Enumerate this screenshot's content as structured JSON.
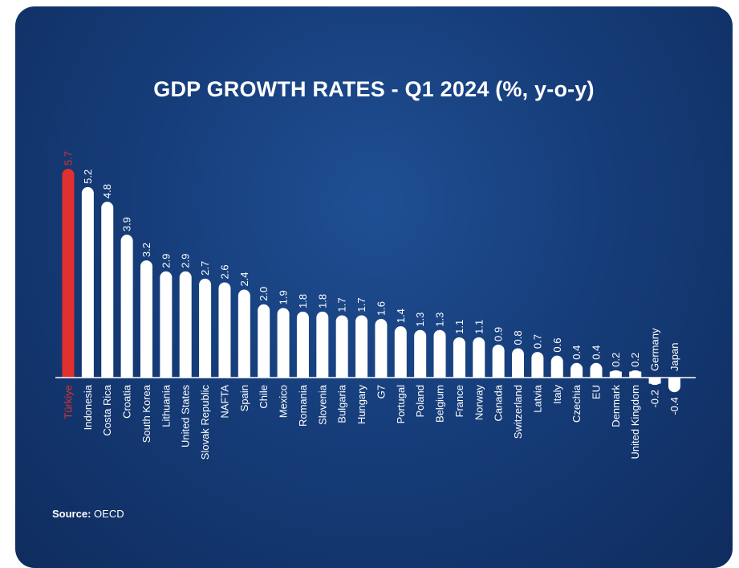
{
  "chart_data": {
    "type": "bar",
    "title": "GDP GROWTH RATES - Q1 2024 (%, y-o-y)",
    "categories": [
      "Türkiye",
      "Indonesia",
      "Costa Rica",
      "Croatia",
      "South Korea",
      "Lithuania",
      "United States",
      "Slovak Republic",
      "NAFTA",
      "Spain",
      "Chile",
      "Mexico",
      "Romania",
      "Slovenia",
      "Bulgaria",
      "Hungary",
      "G7",
      "Portugal",
      "Poland",
      "Belgium",
      "France",
      "Norway",
      "Canada",
      "Switzerland",
      "Latvia",
      "Italy",
      "Czechia",
      "EU",
      "Denmark",
      "United Kingdom",
      "Germany",
      "Japan"
    ],
    "values": [
      5.7,
      5.2,
      4.8,
      3.9,
      3.2,
      2.9,
      2.9,
      2.7,
      2.6,
      2.4,
      2.0,
      1.9,
      1.8,
      1.8,
      1.7,
      1.7,
      1.6,
      1.4,
      1.3,
      1.3,
      1.1,
      1.1,
      0.9,
      0.8,
      0.7,
      0.6,
      0.4,
      0.4,
      0.2,
      0.2,
      -0.2,
      -0.4
    ],
    "value_labels": [
      "5.7",
      "5.2",
      "4.8",
      "3.9",
      "3.2",
      "2.9",
      "2.9",
      "2.7",
      "2.6",
      "2.4",
      "2.0",
      "1.9",
      "1.8",
      "1.8",
      "1.7",
      "1.7",
      "1.6",
      "1.4",
      "1.3",
      "1.3",
      "1.1",
      "1.1",
      "0.9",
      "0.8",
      "0.7",
      "0.6",
      "0.4",
      "0.4",
      "0.2",
      "0.2",
      "-0.2",
      "-0.4"
    ],
    "highlight_category": "Türkiye",
    "highlight_color": "#e0302f",
    "bar_color": "#ffffff",
    "background_color": "#163d7a",
    "xlabel": "",
    "ylabel": "",
    "grid": false
  },
  "source": {
    "label": "Source:",
    "value": "OECD"
  }
}
